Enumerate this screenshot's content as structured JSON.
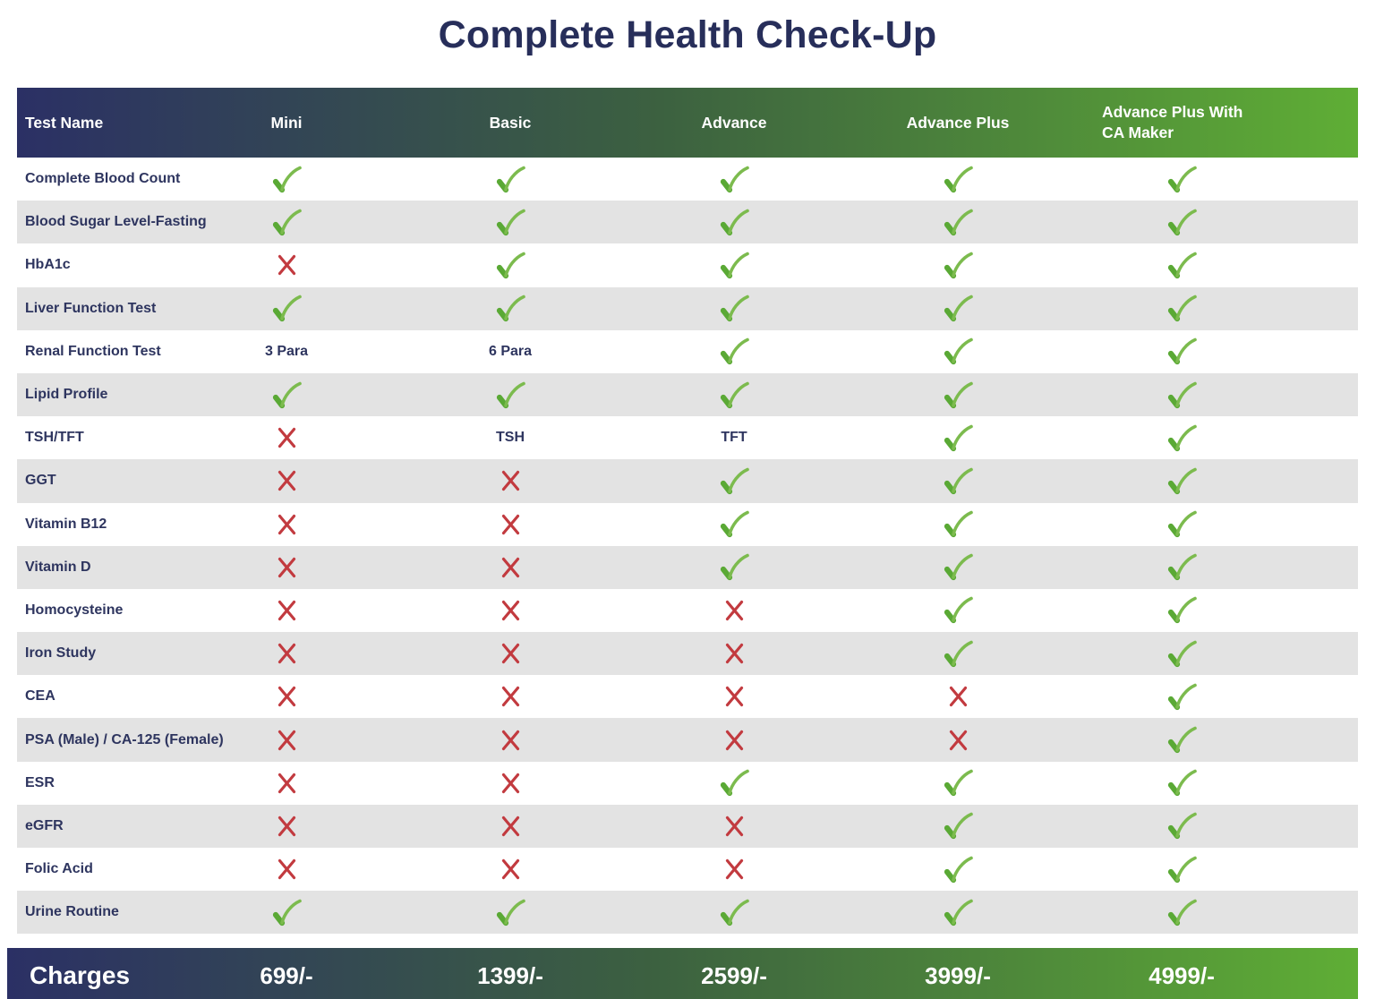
{
  "chart_data": {
    "type": "table",
    "title": "Complete Health Check-Up",
    "columns": [
      "Test Name",
      "Mini",
      "Basic",
      "Advance",
      "Advance Plus",
      "Advance Plus With CA Maker"
    ],
    "rows": [
      {
        "name": "Complete Blood Count",
        "cells": [
          "check",
          "check",
          "check",
          "check",
          "check"
        ]
      },
      {
        "name": "Blood Sugar Level-Fasting",
        "cells": [
          "check",
          "check",
          "check",
          "check",
          "check"
        ]
      },
      {
        "name": "HbA1c",
        "cells": [
          "cross",
          "check",
          "check",
          "check",
          "check"
        ]
      },
      {
        "name": "Liver Function Test",
        "cells": [
          "check",
          "check",
          "check",
          "check",
          "check"
        ]
      },
      {
        "name": "Renal Function Test",
        "cells": [
          "3 Para",
          "6 Para",
          "check",
          "check",
          "check"
        ]
      },
      {
        "name": "Lipid Profile",
        "cells": [
          "check",
          "check",
          "check",
          "check",
          "check"
        ]
      },
      {
        "name": "TSH/TFT",
        "cells": [
          "cross",
          "TSH",
          "TFT",
          "check",
          "check"
        ]
      },
      {
        "name": "GGT",
        "cells": [
          "cross",
          "cross",
          "check",
          "check",
          "check"
        ]
      },
      {
        "name": "Vitamin B12",
        "cells": [
          "cross",
          "cross",
          "check",
          "check",
          "check"
        ]
      },
      {
        "name": "Vitamin D",
        "cells": [
          "cross",
          "cross",
          "check",
          "check",
          "check"
        ]
      },
      {
        "name": "Homocysteine",
        "cells": [
          "cross",
          "cross",
          "cross",
          "check",
          "check"
        ]
      },
      {
        "name": "Iron Study",
        "cells": [
          "cross",
          "cross",
          "cross",
          "check",
          "check"
        ]
      },
      {
        "name": "CEA",
        "cells": [
          "cross",
          "cross",
          "cross",
          "cross",
          "check"
        ]
      },
      {
        "name": "PSA (Male) / CA-125 (Female)",
        "cells": [
          "cross",
          "cross",
          "cross",
          "cross",
          "check"
        ]
      },
      {
        "name": "ESR",
        "cells": [
          "cross",
          "cross",
          "check",
          "check",
          "check"
        ]
      },
      {
        "name": "eGFR",
        "cells": [
          "cross",
          "cross",
          "cross",
          "check",
          "check"
        ]
      },
      {
        "name": "Folic Acid",
        "cells": [
          "cross",
          "cross",
          "cross",
          "check",
          "check"
        ]
      },
      {
        "name": "Urine Routine",
        "cells": [
          "check",
          "check",
          "check",
          "check",
          "check"
        ]
      }
    ],
    "footer": {
      "label": "Charges",
      "values": [
        "699/-",
        "1399/-",
        "2599/-",
        "3999/-",
        "4999/-"
      ]
    }
  },
  "icons": {
    "check": "check-icon",
    "cross": "cross-icon"
  },
  "colors": {
    "gradient_start": "#2b3065",
    "gradient_mid": "#3c6140",
    "gradient_end": "#5fae35",
    "check_green_main": "#5aa935",
    "check_green_tail": "#7cbb4e",
    "cross_red": "#c23a3f",
    "row_alt_gray": "#e3e3e3",
    "text_navy": "#2e355f",
    "title_navy": "#272e5a"
  }
}
